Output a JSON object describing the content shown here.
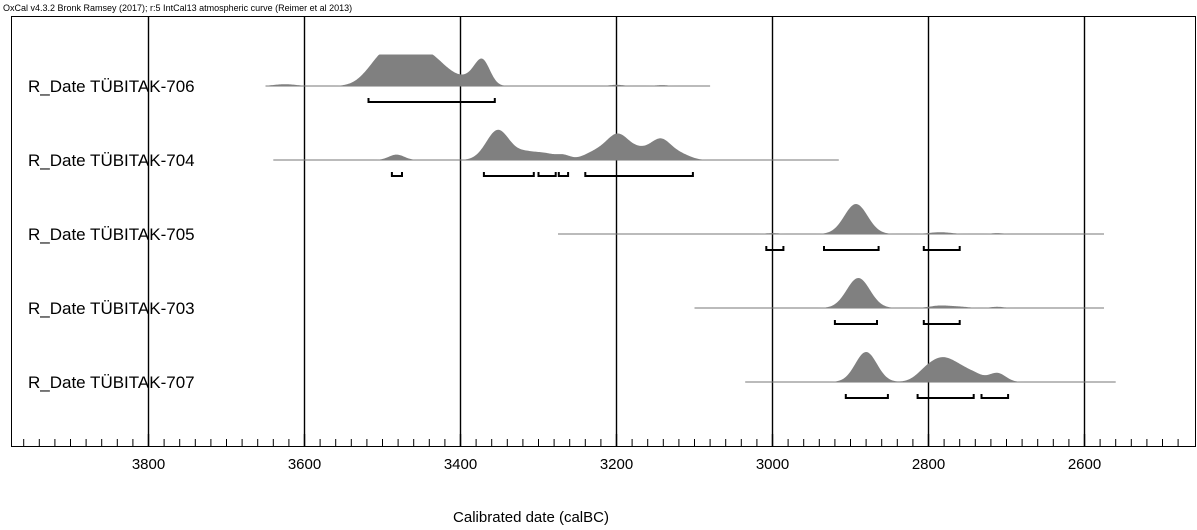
{
  "chart_data": {
    "type": "area",
    "credit": "OxCal v4.3.2 Bronk Ramsey (2017); r:5 IntCal13 atmospheric curve (Reimer et al 2013)",
    "xlabel": "Calibrated date (calBC)",
    "xlim": [
      3975,
      2475
    ],
    "x_ticks": [
      3800,
      3600,
      3400,
      3200,
      3000,
      2800,
      2600
    ],
    "x_tick_labels": [
      "3800",
      "3600",
      "3400",
      "3200",
      "3000",
      "2800",
      "2600"
    ],
    "minor_tick_step": 20,
    "grid": "vertical lines at major ticks",
    "colors": {
      "distribution": "#808080",
      "line": "#000000",
      "baseline": "#777777"
    },
    "series": [
      {
        "name": "R_Date TÜBITAK-706",
        "range": [
          3650,
          3080
        ],
        "peaks": [
          {
            "center": 3625,
            "width": 10,
            "height": 0.06
          },
          {
            "center": 3508,
            "width": 14,
            "height": 0.45
          },
          {
            "center": 3485,
            "width": 16,
            "height": 0.88
          },
          {
            "center": 3460,
            "width": 16,
            "height": 0.78
          },
          {
            "center": 3432,
            "width": 14,
            "height": 0.65
          },
          {
            "center": 3405,
            "width": 8,
            "height": 0.15
          },
          {
            "center": 3388,
            "width": 6,
            "height": 0.2
          },
          {
            "center": 3372,
            "width": 6,
            "height": 0.85
          },
          {
            "center": 3200,
            "width": 5,
            "height": 0.04
          },
          {
            "center": 3142,
            "width": 5,
            "height": 0.03
          }
        ],
        "hpd_ranges": [
          [
            3518,
            3356
          ]
        ]
      },
      {
        "name": "R_Date TÜBITAK-704",
        "range": [
          3640,
          2915
        ],
        "peaks": [
          {
            "center": 3482,
            "width": 6,
            "height": 0.18
          },
          {
            "center": 3352,
            "width": 11,
            "height": 1.0
          },
          {
            "center": 3315,
            "width": 10,
            "height": 0.25
          },
          {
            "center": 3290,
            "width": 8,
            "height": 0.18
          },
          {
            "center": 3268,
            "width": 5,
            "height": 0.15
          },
          {
            "center": 3225,
            "width": 12,
            "height": 0.28
          },
          {
            "center": 3198,
            "width": 10,
            "height": 0.78
          },
          {
            "center": 3170,
            "width": 10,
            "height": 0.3
          },
          {
            "center": 3143,
            "width": 9,
            "height": 0.65
          },
          {
            "center": 3118,
            "width": 9,
            "height": 0.18
          }
        ],
        "hpd_ranges": [
          [
            3488,
            3475
          ],
          [
            3370,
            3306
          ],
          [
            3300,
            3278
          ],
          [
            3274,
            3262
          ],
          [
            3240,
            3102
          ]
        ]
      },
      {
        "name": "R_Date TÜBITAK-705",
        "range": [
          3275,
          2575
        ],
        "peaks": [
          {
            "center": 3000,
            "width": 6,
            "height": 0.03
          },
          {
            "center": 2893,
            "width": 11,
            "height": 1.0
          },
          {
            "center": 2785,
            "width": 10,
            "height": 0.06
          },
          {
            "center": 2712,
            "width": 4,
            "height": 0.03
          }
        ],
        "hpd_ranges": [
          [
            3008,
            2986
          ],
          [
            2934,
            2864
          ],
          [
            2806,
            2760
          ]
        ]
      },
      {
        "name": "R_Date TÜBITAK-703",
        "range": [
          3100,
          2575
        ],
        "peaks": [
          {
            "center": 2890,
            "width": 11,
            "height": 1.0
          },
          {
            "center": 2785,
            "width": 9,
            "height": 0.08
          },
          {
            "center": 2760,
            "width": 8,
            "height": 0.04
          },
          {
            "center": 2712,
            "width": 5,
            "height": 0.04
          }
        ],
        "hpd_ranges": [
          [
            2920,
            2866
          ],
          [
            2806,
            2760
          ]
        ]
      },
      {
        "name": "R_Date TÜBITAK-707",
        "range": [
          3035,
          2560
        ],
        "peaks": [
          {
            "center": 2880,
            "width": 10,
            "height": 1.0
          },
          {
            "center": 2800,
            "width": 10,
            "height": 0.45
          },
          {
            "center": 2780,
            "width": 9,
            "height": 0.55
          },
          {
            "center": 2760,
            "width": 9,
            "height": 0.4
          },
          {
            "center": 2740,
            "width": 7,
            "height": 0.2
          },
          {
            "center": 2712,
            "width": 7,
            "height": 0.3
          }
        ],
        "hpd_ranges": [
          [
            2906,
            2852
          ],
          [
            2814,
            2742
          ],
          [
            2732,
            2698
          ]
        ]
      }
    ]
  }
}
